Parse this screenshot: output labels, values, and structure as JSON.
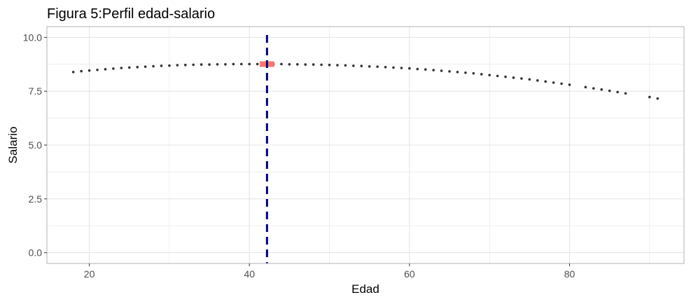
{
  "chart_data": {
    "type": "scatter",
    "title": "Figura 5:Perfil edad-salario",
    "xlabel": "Edad",
    "ylabel": "Salario",
    "xlim": [
      14.7,
      94.3
    ],
    "ylim": [
      -0.5,
      10.5
    ],
    "x_ticks": [
      20,
      40,
      60,
      80
    ],
    "x_tick_labels": [
      "20",
      "40",
      "60",
      "80"
    ],
    "y_ticks": [
      0,
      2.5,
      5,
      7.5,
      10
    ],
    "y_tick_labels": [
      "0.0",
      "2.5",
      "5.0",
      "7.5",
      "10.0"
    ],
    "grid": true,
    "legend": "none",
    "points": {
      "x": [
        18,
        19,
        20,
        21,
        22,
        23,
        24,
        25,
        26,
        27,
        28,
        29,
        30,
        31,
        32,
        33,
        34,
        35,
        36,
        37,
        38,
        39,
        40,
        41,
        42,
        43,
        44,
        45,
        46,
        47,
        48,
        49,
        50,
        51,
        52,
        53,
        54,
        55,
        56,
        57,
        58,
        59,
        60,
        61,
        62,
        63,
        64,
        65,
        66,
        67,
        68,
        69,
        70,
        71,
        72,
        73,
        74,
        75,
        76,
        77,
        78,
        79,
        80,
        82,
        83,
        84,
        85,
        86,
        87,
        90,
        91
      ],
      "y": [
        8.39,
        8.43,
        8.46,
        8.49,
        8.52,
        8.55,
        8.58,
        8.6,
        8.62,
        8.64,
        8.66,
        8.68,
        8.69,
        8.71,
        8.72,
        8.73,
        8.74,
        8.74,
        8.75,
        8.75,
        8.76,
        8.76,
        8.76,
        8.76,
        8.76,
        8.76,
        8.76,
        8.75,
        8.75,
        8.74,
        8.74,
        8.73,
        8.72,
        8.71,
        8.7,
        8.68,
        8.67,
        8.65,
        8.64,
        8.62,
        8.6,
        8.58,
        8.56,
        8.53,
        8.51,
        8.48,
        8.45,
        8.42,
        8.39,
        8.36,
        8.33,
        8.29,
        8.25,
        8.21,
        8.17,
        8.13,
        8.09,
        8.05,
        8.0,
        7.95,
        7.9,
        7.85,
        7.8,
        7.69,
        7.63,
        7.58,
        7.52,
        7.46,
        7.4,
        7.23,
        7.16
      ],
      "color": "#333333"
    },
    "highlight": {
      "x": [
        41.3,
        43.1
      ],
      "y": 8.76,
      "color": "#F8766D"
    },
    "vline": {
      "x": 42.2,
      "color": "#00007F",
      "style": "dashed"
    },
    "panel_border_color": "#b3b3b3",
    "grid_color": "#e5e5e5"
  }
}
